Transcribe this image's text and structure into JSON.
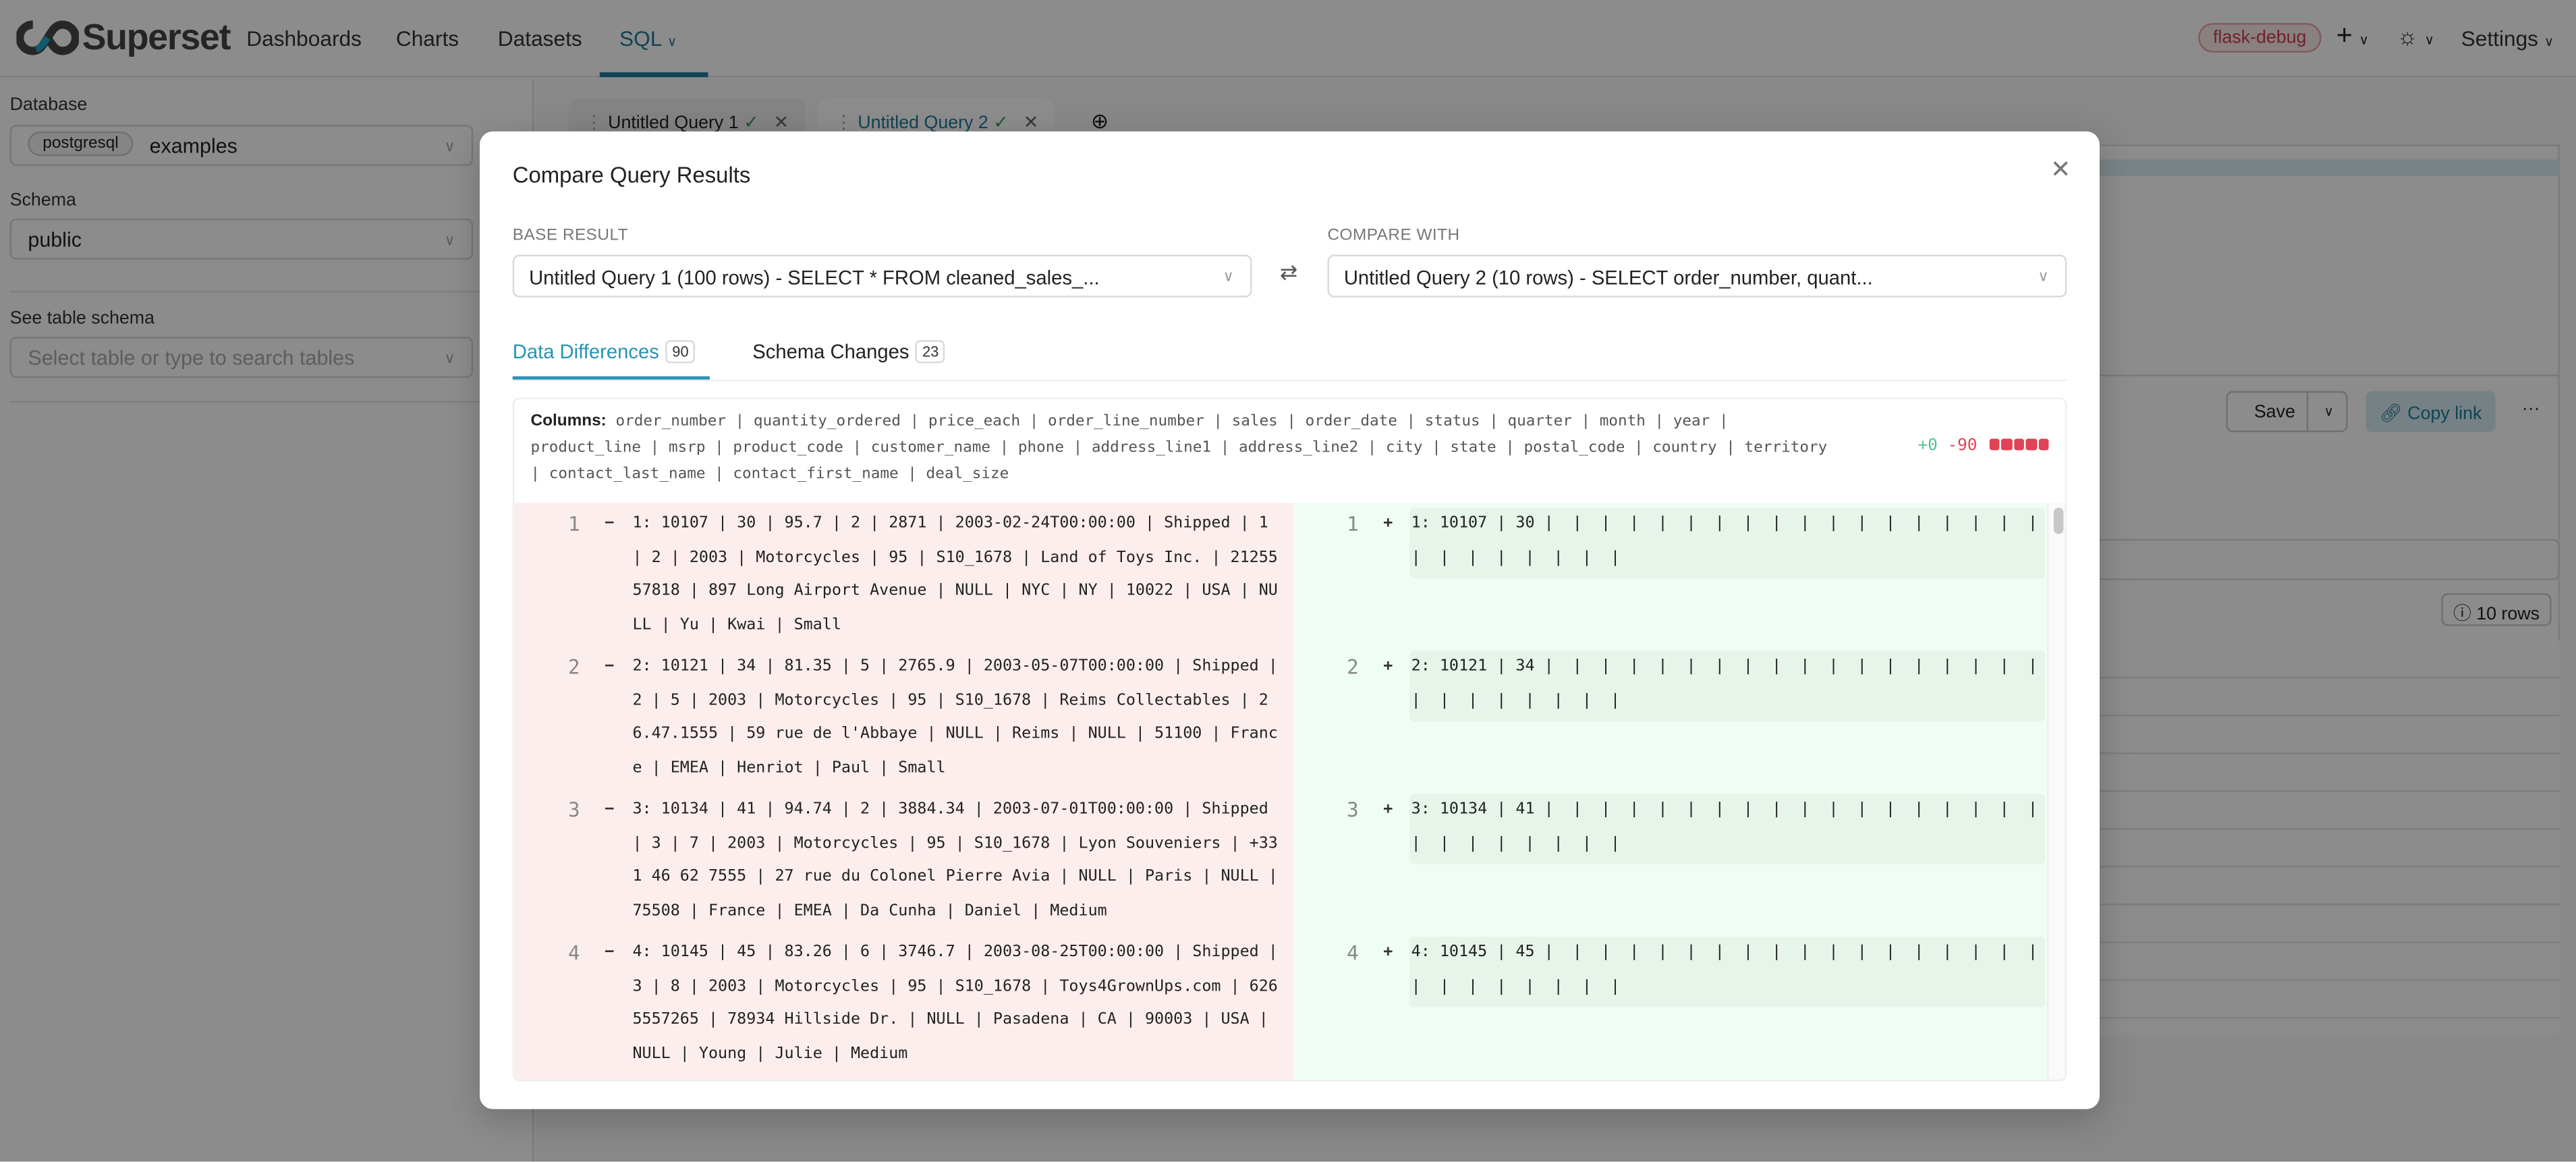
{
  "header": {
    "brand": "Superset",
    "nav": [
      "Dashboards",
      "Charts",
      "Datasets",
      "SQL"
    ],
    "active_nav": "SQL",
    "env_badge": "flask-debug",
    "settings": "Settings"
  },
  "sidebar": {
    "database_label": "Database",
    "database_engine": "postgresql",
    "database_value": "examples",
    "schema_label": "Schema",
    "schema_value": "public",
    "table_label": "See table schema",
    "table_placeholder": "Select table or type to search tables"
  },
  "query_tabs": [
    {
      "label": "Untitled Query 1",
      "active": false
    },
    {
      "label": "Untitled Query 2",
      "active": true
    }
  ],
  "toolbar": {
    "save": "Save",
    "copy_link": "Copy link",
    "more": "···",
    "rows_badge": "10 rows"
  },
  "modal": {
    "title": "Compare Query Results",
    "base_label": "BASE RESULT",
    "base_value": "Untitled Query 1 (100 rows) - SELECT * FROM cleaned_sales_...",
    "compare_label": "COMPARE WITH",
    "compare_value": "Untitled Query 2 (10 rows) - SELECT order_number, quant...",
    "tabs": [
      {
        "label": "Data Differences",
        "count": "90",
        "active": true
      },
      {
        "label": "Schema Changes",
        "count": "23",
        "active": false
      }
    ],
    "columns_label": "Columns:",
    "columns": "order_number | quantity_ordered | price_each | order_line_number | sales | order_date | status | quarter | month | year | product_line | msrp | product_code | customer_name | phone | address_line1 | address_line2 | city | state | postal_code | country | territory | contact_last_name | contact_first_name | deal_size",
    "added": "+0",
    "removed": "-90",
    "colors": {
      "accent": "#2893b3",
      "removed": "#e04355",
      "added": "#5ac18e",
      "removed_bg": "#fdeeee",
      "added_bg": "#f0fdf4"
    },
    "rows": [
      {
        "n": "1",
        "removed": "1: 10107 | 30 | 95.7 | 2 | 2871 | 2003-02-24T00:00:00 | Shipped | 1 | 2 | 2003 | Motorcycles | 95 | S10_1678 | Land of Toys Inc. | 2125557818 | 897 Long Airport Avenue | NULL | NYC | NY | 10022 | USA | NULL | Yu | Kwai | Small",
        "added": "1: 10107 | 30 |  |  |  |  |  |  |  |  |  |  |  |  |  |  |  |  |  |  |  |  |  |  |  |  |  | "
      },
      {
        "n": "2",
        "removed": "2: 10121 | 34 | 81.35 | 5 | 2765.9 | 2003-05-07T00:00:00 | Shipped | 2 | 5 | 2003 | Motorcycles | 95 | S10_1678 | Reims Collectables | 26.47.1555 | 59 rue de l'Abbaye | NULL | Reims | NULL | 51100 | France | EMEA | Henriot | Paul | Small",
        "added": "2: 10121 | 34 |  |  |  |  |  |  |  |  |  |  |  |  |  |  |  |  |  |  |  |  |  |  |  |  |  | "
      },
      {
        "n": "3",
        "removed": "3: 10134 | 41 | 94.74 | 2 | 3884.34 | 2003-07-01T00:00:00 | Shipped | 3 | 7 | 2003 | Motorcycles | 95 | S10_1678 | Lyon Souveniers | +33 1 46 62 7555 | 27 rue du Colonel Pierre Avia | NULL | Paris | NULL | 75508 | France | EMEA | Da Cunha | Daniel | Medium",
        "added": "3: 10134 | 41 |  |  |  |  |  |  |  |  |  |  |  |  |  |  |  |  |  |  |  |  |  |  |  |  |  | "
      },
      {
        "n": "4",
        "removed": "4: 10145 | 45 | 83.26 | 6 | 3746.7 | 2003-08-25T00:00:00 | Shipped | 3 | 8 | 2003 | Motorcycles | 95 | S10_1678 | Toys4GrownUps.com | 6265557265 | 78934 Hillside Dr. | NULL | Pasadena | CA | 90003 | USA | NULL | Young | Julie | Medium",
        "added": "4: 10145 | 45 |  |  |  |  |  |  |  |  |  |  |  |  |  |  |  |  |  |  |  |  |  |  |  |  |  | "
      }
    ]
  }
}
